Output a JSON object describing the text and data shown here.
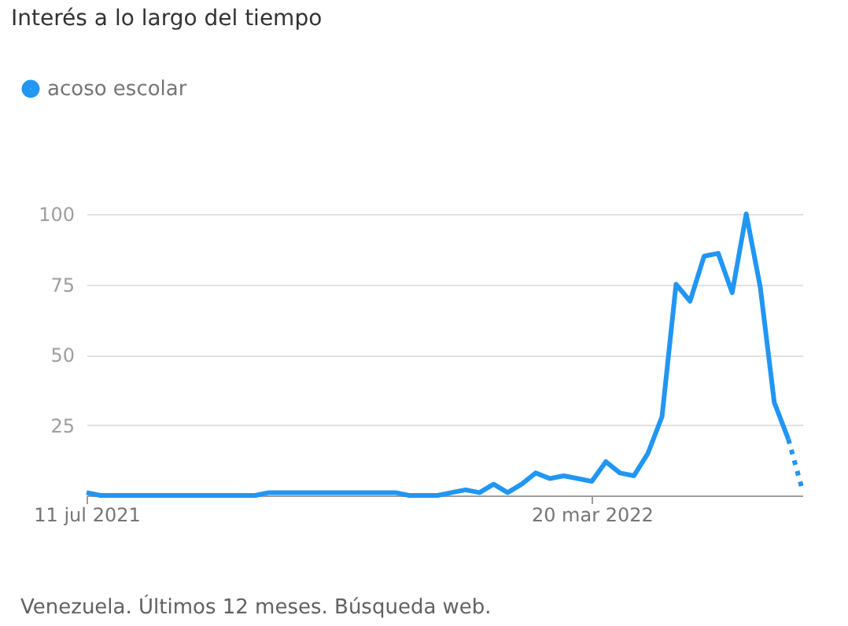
{
  "chart_data": {
    "type": "line",
    "title": "Interés a lo largo del tiempo",
    "x": [
      "2021-07-11",
      "2021-07-18",
      "2021-07-25",
      "2021-08-01",
      "2021-08-08",
      "2021-08-15",
      "2021-08-22",
      "2021-08-29",
      "2021-09-05",
      "2021-09-12",
      "2021-09-19",
      "2021-09-26",
      "2021-10-03",
      "2021-10-10",
      "2021-10-17",
      "2021-10-24",
      "2021-10-31",
      "2021-11-07",
      "2021-11-14",
      "2021-11-21",
      "2021-11-28",
      "2021-12-05",
      "2021-12-12",
      "2021-12-19",
      "2021-12-26",
      "2022-01-02",
      "2022-01-09",
      "2022-01-16",
      "2022-01-23",
      "2022-01-30",
      "2022-02-06",
      "2022-02-13",
      "2022-02-20",
      "2022-02-27",
      "2022-03-06",
      "2022-03-13",
      "2022-03-20",
      "2022-03-27",
      "2022-04-03",
      "2022-04-10",
      "2022-04-17",
      "2022-04-24",
      "2022-05-01",
      "2022-05-08",
      "2022-05-15",
      "2022-05-22",
      "2022-05-29",
      "2022-06-05",
      "2022-06-12",
      "2022-06-19",
      "2022-06-26"
    ],
    "series": [
      {
        "name": "acoso escolar",
        "color": "#2196f3",
        "line_style": "solid",
        "values": [
          1,
          0,
          0,
          0,
          0,
          0,
          0,
          0,
          0,
          0,
          0,
          0,
          0,
          1,
          1,
          1,
          1,
          1,
          1,
          1,
          1,
          1,
          1,
          0,
          0,
          0,
          1,
          2,
          1,
          4,
          1,
          4,
          8,
          6,
          7,
          6,
          5,
          12,
          8,
          7,
          15,
          28,
          75,
          69,
          85,
          86,
          72,
          100,
          74,
          33,
          20
        ]
      },
      {
        "type": "line",
        "color": "#2196f3",
        "line_style": "dotted",
        "x": [
          "2022-06-26",
          "2022-07-03"
        ],
        "values": [
          20,
          2
        ]
      }
    ],
    "xlim": [
      "2021-07-11",
      "2022-07-03"
    ],
    "xticks": [
      {
        "value": "2021-07-11",
        "label": "11 jul 2021"
      },
      {
        "value": "2022-03-20",
        "label": "20 mar 2022"
      }
    ],
    "ylim": [
      0,
      100
    ],
    "yticks": [
      25,
      50,
      75,
      100
    ],
    "grid": "y",
    "legend": "top left",
    "annotations": [
      "Venezuela. Últimos 12 meses. Búsqueda web."
    ]
  }
}
